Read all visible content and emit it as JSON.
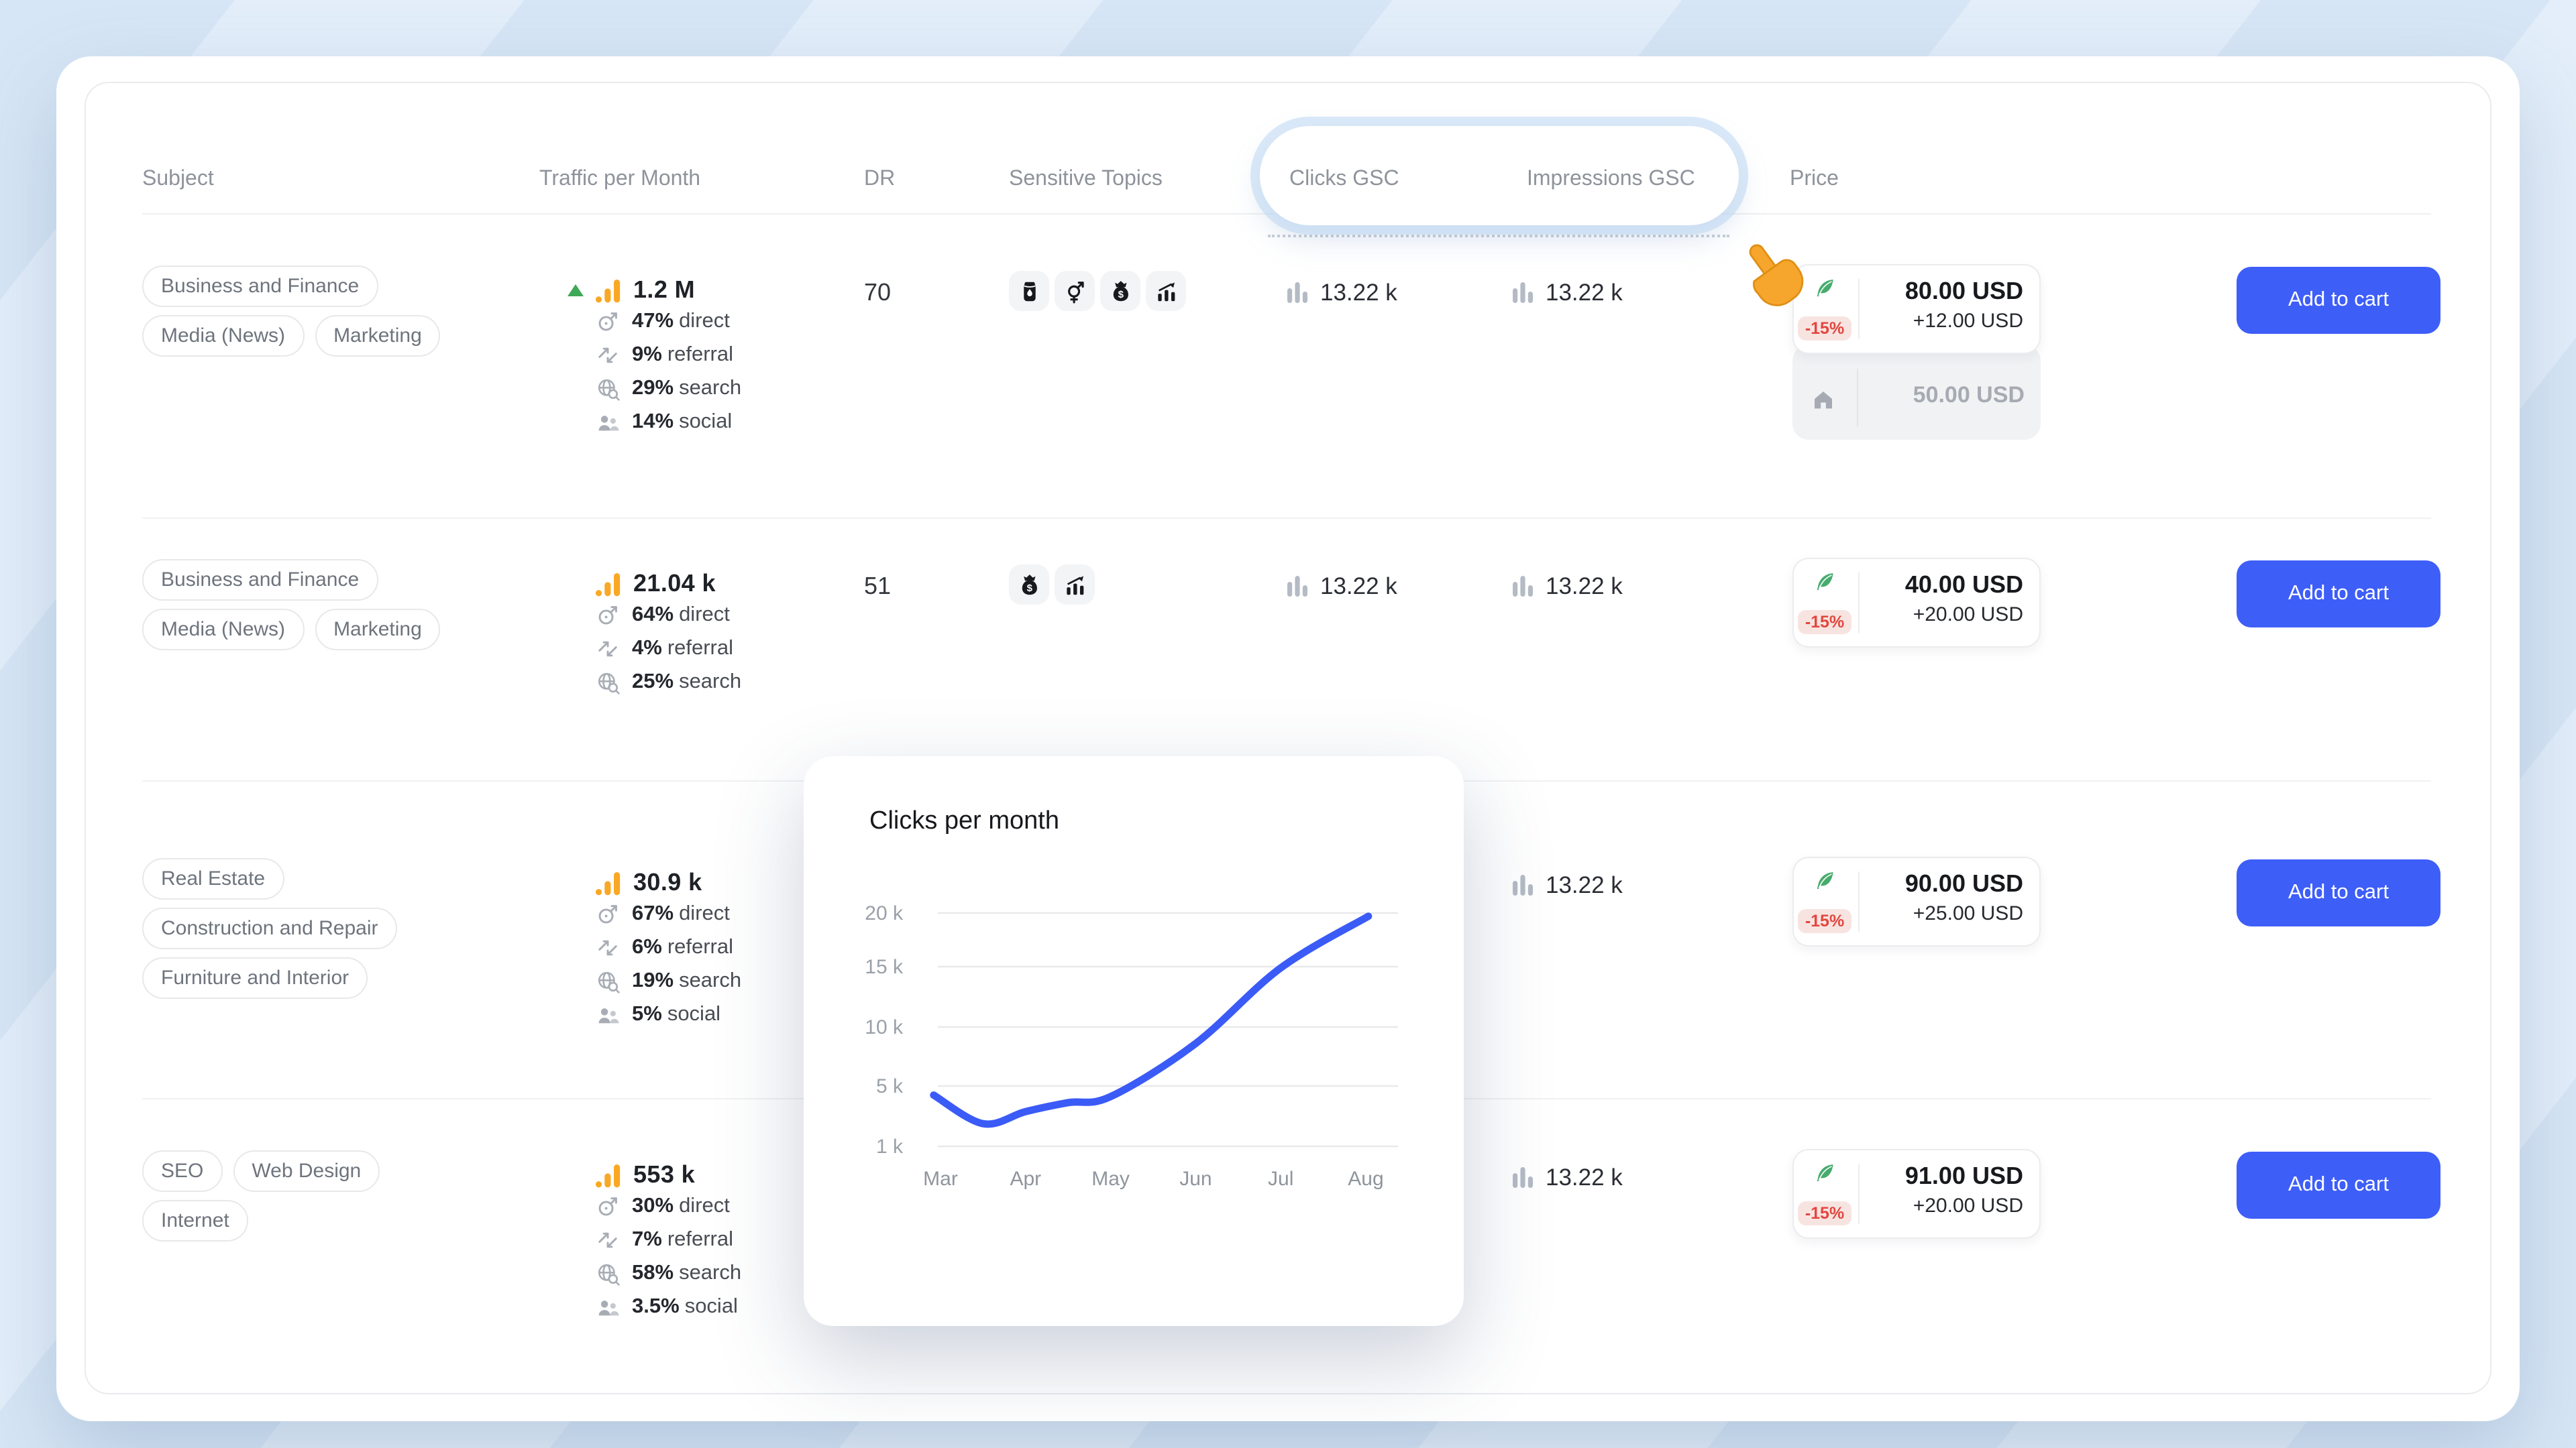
{
  "colors": {
    "accent_blue": "#3E5EF8",
    "chart_line": "#3B5BF7",
    "discount_red": "#E2473E",
    "discount_bg": "#F7E4E1",
    "feather_green": "#46AB6D",
    "traffic_orange": "#F9A825",
    "trend_green": "#3FA856",
    "page_background": "#D9E8F7"
  },
  "header": {
    "columns": [
      "Subject",
      "Traffic per Month",
      "DR",
      "Sensitive Topics",
      "Clicks GSC",
      "Impressions GSC",
      "Price"
    ]
  },
  "labels": {
    "add_to_cart": "Add to cart"
  },
  "rows": [
    {
      "subjects": [
        "Business and Finance",
        "Media (News)",
        "Marketing"
      ],
      "traffic": {
        "value": "1.2 M",
        "trend_up": true,
        "sources": [
          {
            "pct": "47%",
            "label": "direct"
          },
          {
            "pct": "9%",
            "label": "referral"
          },
          {
            "pct": "29%",
            "label": "search"
          },
          {
            "pct": "14%",
            "label": "social"
          }
        ]
      },
      "dr": "70",
      "sensitive_topics": [
        "alcohol",
        "adult",
        "gambling",
        "trading"
      ],
      "clicks_gsc": "13.22 k",
      "impressions_gsc": "13.22 k",
      "price": {
        "discount": "-15%",
        "main": "80.00 USD",
        "extra": "+12.00 USD",
        "alt": "50.00 USD"
      }
    },
    {
      "subjects": [
        "Business and Finance",
        "Media (News)",
        "Marketing"
      ],
      "traffic": {
        "value": "21.04 k",
        "trend_up": false,
        "sources": [
          {
            "pct": "64%",
            "label": "direct"
          },
          {
            "pct": "4%",
            "label": "referral"
          },
          {
            "pct": "25%",
            "label": "search"
          }
        ]
      },
      "dr": "51",
      "sensitive_topics": [
        "gambling",
        "trading"
      ],
      "clicks_gsc": "13.22 k",
      "impressions_gsc": "13.22 k",
      "price": {
        "discount": "-15%",
        "main": "40.00 USD",
        "extra": "+20.00 USD",
        "alt": null
      }
    },
    {
      "subjects": [
        "Real Estate",
        "Construction and Repair",
        "Furniture and Interior"
      ],
      "traffic": {
        "value": "30.9 k",
        "trend_up": false,
        "sources": [
          {
            "pct": "67%",
            "label": "direct"
          },
          {
            "pct": "6%",
            "label": "referral"
          },
          {
            "pct": "19%",
            "label": "search"
          },
          {
            "pct": "5%",
            "label": "social"
          }
        ]
      },
      "dr": null,
      "sensitive_topics": null,
      "clicks_gsc": null,
      "impressions_gsc": "13.22 k",
      "price": {
        "discount": "-15%",
        "main": "90.00 USD",
        "extra": "+25.00 USD",
        "alt": null
      }
    },
    {
      "subjects": [
        "SEO",
        "Web Design",
        "Internet"
      ],
      "traffic": {
        "value": "553 k",
        "trend_up": false,
        "sources": [
          {
            "pct": "30%",
            "label": "direct"
          },
          {
            "pct": "7%",
            "label": "referral"
          },
          {
            "pct": "58%",
            "label": "search"
          },
          {
            "pct": "3.5%",
            "label": "social"
          }
        ]
      },
      "dr": null,
      "sensitive_topics": null,
      "clicks_gsc": null,
      "impressions_gsc": "13.22 k",
      "price": {
        "discount": "-15%",
        "main": "91.00 USD",
        "extra": "+20.00 USD",
        "alt": null
      }
    }
  ],
  "popup": {
    "title": "Clicks per month"
  },
  "chart_data": {
    "type": "line",
    "title": "Clicks per month",
    "x": [
      "Mar",
      "Apr",
      "May",
      "Jun",
      "Jul",
      "Aug"
    ],
    "values": [
      4400,
      3300,
      4300,
      8600,
      14900,
      19700
    ],
    "curve_points": [
      [
        -0.08,
        4400
      ],
      [
        0.5,
        2500
      ],
      [
        1,
        3300
      ],
      [
        1.5,
        3900
      ],
      [
        2,
        4300
      ],
      [
        3,
        8600
      ],
      [
        4,
        14900
      ],
      [
        5.03,
        19700
      ]
    ],
    "y_ticks": [
      {
        "label": "20 k",
        "value": 20000
      },
      {
        "label": "15 k",
        "value": 15000
      },
      {
        "label": "10 k",
        "value": 10000
      },
      {
        "label": "5 k",
        "value": 5000
      },
      {
        "label": "1 k",
        "value": 1000
      }
    ],
    "ylim": [
      1000,
      20000
    ],
    "grid": true,
    "legend": false,
    "line_color": "#3B5BF7"
  },
  "cursor": {
    "type": "pointing-hand"
  }
}
